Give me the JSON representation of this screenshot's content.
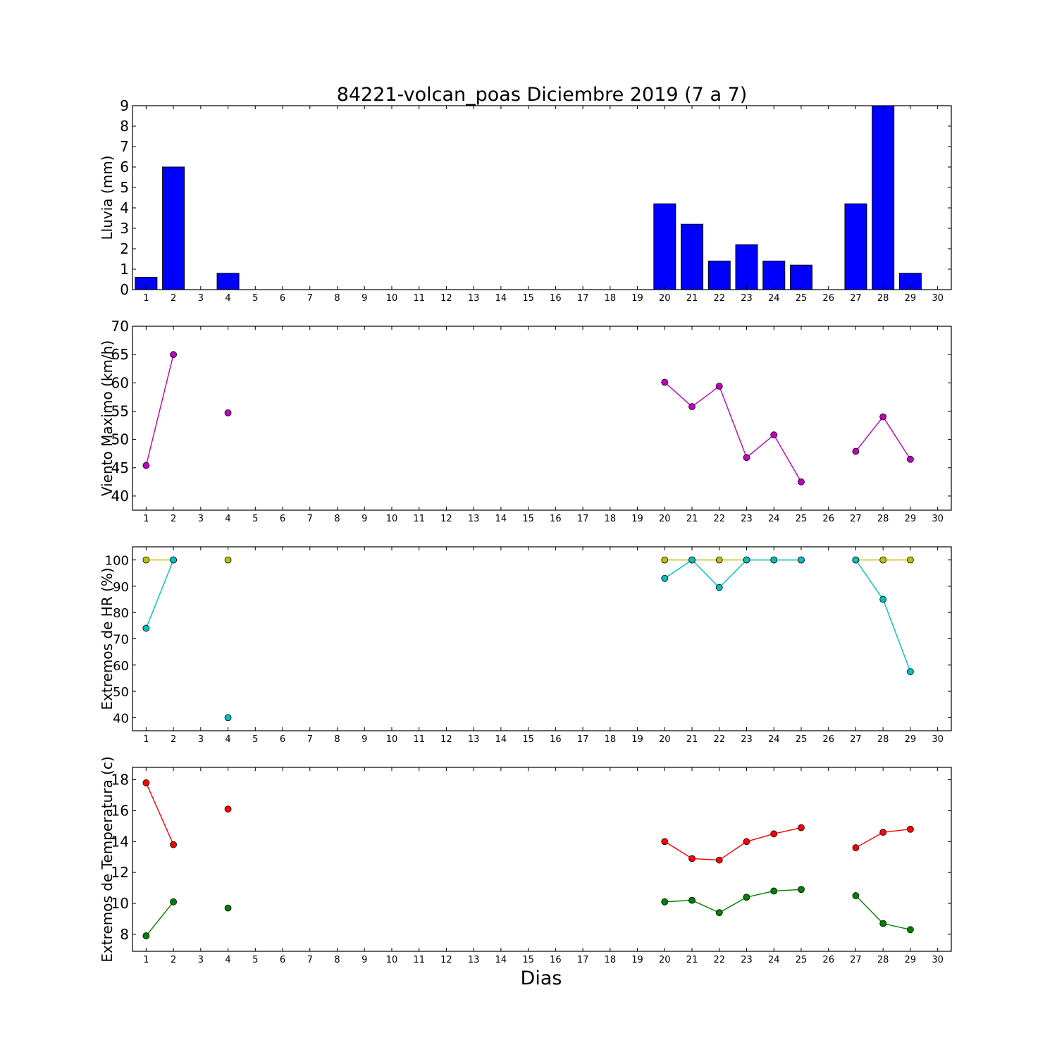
{
  "title": "84221-volcan_poas Diciembre 2019  (7 a 7)",
  "xlabel": "Dias",
  "colors": {
    "rain_bar": "#0000ff",
    "wind": "#bf00bf",
    "hr_max": "#bfbf00",
    "hr_min": "#00bfbf",
    "temp_max": "#ff0000",
    "temp_min": "#008000"
  },
  "chart_data": [
    {
      "type": "bar",
      "ylabel": "Lluvia (mm)",
      "ylim": [
        0,
        9
      ],
      "yticks": [
        0,
        1,
        2,
        3,
        4,
        5,
        6,
        7,
        8,
        9
      ],
      "xlim": [
        0.5,
        30.5
      ],
      "x_ticks": [
        1,
        2,
        3,
        4,
        5,
        6,
        7,
        8,
        9,
        10,
        11,
        12,
        13,
        14,
        15,
        16,
        17,
        18,
        19,
        20,
        21,
        22,
        23,
        24,
        25,
        26,
        27,
        28,
        29,
        30
      ],
      "series": [
        {
          "x": [
            1,
            2,
            4,
            20,
            21,
            22,
            23,
            24,
            25,
            27,
            28,
            29
          ],
          "values": [
            0.6,
            6.0,
            0.8,
            4.2,
            3.2,
            1.4,
            2.2,
            1.4,
            1.2,
            4.2,
            9.0,
            0.8
          ]
        }
      ]
    },
    {
      "type": "line",
      "ylabel": "Viento Maximo (km/h)",
      "ylim": [
        37.5,
        70
      ],
      "yticks": [
        40,
        45,
        50,
        55,
        60,
        65,
        70
      ],
      "xlim": [
        0.5,
        30.5
      ],
      "x_ticks": [
        1,
        2,
        3,
        4,
        5,
        6,
        7,
        8,
        9,
        10,
        11,
        12,
        13,
        14,
        15,
        16,
        17,
        18,
        19,
        20,
        21,
        22,
        23,
        24,
        25,
        26,
        27,
        28,
        29,
        30
      ],
      "series": [
        {
          "x": [
            1,
            2,
            4,
            20,
            21,
            22,
            23,
            24,
            25,
            27,
            28,
            29
          ],
          "values": [
            45.4,
            65.0,
            54.7,
            60.1,
            55.8,
            59.4,
            46.8,
            50.8,
            42.5,
            47.9,
            54.0,
            46.5
          ]
        }
      ]
    },
    {
      "type": "line",
      "ylabel": "Extremos de HR (%)",
      "ylim": [
        35,
        105
      ],
      "yticks": [
        40,
        50,
        60,
        70,
        80,
        90,
        100
      ],
      "xlim": [
        0.5,
        30.5
      ],
      "x_ticks": [
        1,
        2,
        3,
        4,
        5,
        6,
        7,
        8,
        9,
        10,
        11,
        12,
        13,
        14,
        15,
        16,
        17,
        18,
        19,
        20,
        21,
        22,
        23,
        24,
        25,
        26,
        27,
        28,
        29,
        30
      ],
      "series": [
        {
          "x": [
            1,
            2,
            4,
            20,
            21,
            22,
            23,
            24,
            25,
            27,
            28,
            29
          ],
          "values": [
            100,
            100,
            100,
            100,
            100,
            100,
            100,
            100,
            100,
            100,
            100,
            100
          ]
        },
        {
          "x": [
            1,
            2,
            4,
            20,
            21,
            22,
            23,
            24,
            25,
            27,
            28,
            29
          ],
          "values": [
            74,
            100,
            40,
            93,
            100,
            89.5,
            100,
            100,
            100,
            100,
            85,
            57.5
          ]
        }
      ]
    },
    {
      "type": "line",
      "ylabel": "Extremos de Temperatura (c)",
      "ylim": [
        6.9,
        18.8
      ],
      "yticks": [
        8,
        10,
        12,
        14,
        16,
        18
      ],
      "xlim": [
        0.5,
        30.5
      ],
      "x_ticks": [
        1,
        2,
        3,
        4,
        5,
        6,
        7,
        8,
        9,
        10,
        11,
        12,
        13,
        14,
        15,
        16,
        17,
        18,
        19,
        20,
        21,
        22,
        23,
        24,
        25,
        26,
        27,
        28,
        29,
        30
      ],
      "series": [
        {
          "x": [
            1,
            2,
            4,
            20,
            21,
            22,
            23,
            24,
            25,
            27,
            28,
            29
          ],
          "values": [
            17.8,
            13.8,
            16.1,
            14.0,
            12.9,
            12.8,
            14.0,
            14.5,
            14.9,
            13.6,
            14.6,
            14.8
          ]
        },
        {
          "x": [
            1,
            2,
            4,
            20,
            21,
            22,
            23,
            24,
            25,
            27,
            28,
            29
          ],
          "values": [
            7.9,
            10.1,
            9.7,
            10.1,
            10.2,
            9.4,
            10.4,
            10.8,
            10.9,
            10.5,
            8.7,
            8.3
          ]
        }
      ]
    }
  ]
}
